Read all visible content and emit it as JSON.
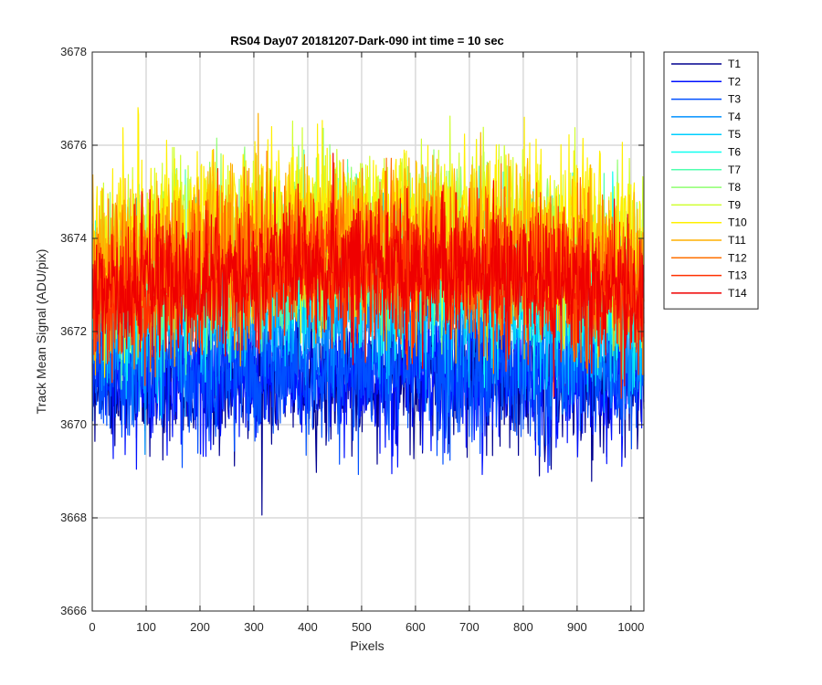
{
  "chart_data": {
    "type": "line",
    "title": "RS04 Day07 20181207-Dark-090 int time = 10 sec",
    "xlabel": "Pixels",
    "ylabel": "Track Mean Signal (ADU/pix)",
    "xlim": [
      0,
      1024
    ],
    "ylim": [
      3666,
      3678
    ],
    "xticks": [
      0,
      100,
      200,
      300,
      400,
      500,
      600,
      700,
      800,
      900,
      1000
    ],
    "yticks": [
      3666,
      3668,
      3670,
      3672,
      3674,
      3676,
      3678
    ],
    "grid": true,
    "legend_position": "outside-top-right",
    "series": [
      {
        "name": "T1",
        "color": "#00008F",
        "mean": 3671.0,
        "spread": 0.75,
        "envelope": "flat"
      },
      {
        "name": "T2",
        "color": "#0010FF",
        "mean": 3671.1,
        "spread": 0.75,
        "envelope": "flat"
      },
      {
        "name": "T3",
        "color": "#0050FF",
        "mean": 3671.2,
        "spread": 0.75,
        "envelope": "flat"
      },
      {
        "name": "T4",
        "color": "#0090FF",
        "mean": 3672.2,
        "spread": 0.75,
        "envelope": "hump"
      },
      {
        "name": "T5",
        "color": "#00CFFF",
        "mean": 3672.7,
        "spread": 0.8,
        "envelope": "hump"
      },
      {
        "name": "T6",
        "color": "#10FFEF",
        "mean": 3673.0,
        "spread": 0.8,
        "envelope": "hump"
      },
      {
        "name": "T7",
        "color": "#50FFAF",
        "mean": 3673.3,
        "spread": 0.8,
        "envelope": "hump"
      },
      {
        "name": "T8",
        "color": "#8FFF70",
        "mean": 3673.6,
        "spread": 0.8,
        "envelope": "hump"
      },
      {
        "name": "T9",
        "color": "#CFFF30",
        "mean": 3673.9,
        "spread": 0.85,
        "envelope": "hump"
      },
      {
        "name": "T10",
        "color": "#FFEF00",
        "mean": 3674.2,
        "spread": 0.85,
        "envelope": "hump"
      },
      {
        "name": "T11",
        "color": "#FFB000",
        "mean": 3673.7,
        "spread": 0.85,
        "envelope": "hump"
      },
      {
        "name": "T12",
        "color": "#FF7000",
        "mean": 3673.3,
        "spread": 0.85,
        "envelope": "hump"
      },
      {
        "name": "T13",
        "color": "#FF3000",
        "mean": 3673.0,
        "spread": 0.75,
        "envelope": "hump"
      },
      {
        "name": "T14",
        "color": "#EF0000",
        "mean": 3673.1,
        "spread": 0.7,
        "envelope": "hump"
      }
    ]
  }
}
